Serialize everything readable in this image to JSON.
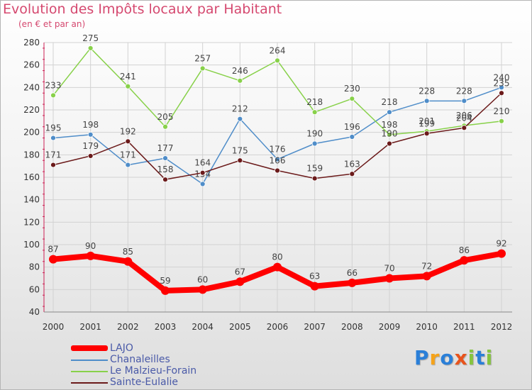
{
  "header": {
    "title": "Evolution des Impôts locaux par Habitant",
    "subtitle": "(en € et par an)"
  },
  "chart_data": {
    "type": "line",
    "title": "Evolution des Impôts locaux par Habitant",
    "subtitle": "(en € et par an)",
    "ylim": [
      40,
      280
    ],
    "y_ticks": [
      40,
      60,
      80,
      100,
      120,
      140,
      160,
      180,
      200,
      220,
      240,
      260,
      280
    ],
    "x": [
      "2000",
      "2001",
      "2002",
      "2003",
      "2004",
      "2005",
      "2006",
      "2007",
      "2008",
      "2009",
      "2010",
      "2011",
      "2012"
    ],
    "grid": true,
    "legend_position": "bottom-left",
    "series": [
      {
        "name": "LAJO",
        "color": "#ff0000",
        "values": [
          87,
          90,
          85,
          59,
          60,
          67,
          80,
          63,
          66,
          70,
          72,
          86,
          92
        ]
      },
      {
        "name": "Chanaleilles",
        "color": "#4f8dc9",
        "values": [
          195,
          198,
          171,
          177,
          154,
          212,
          176,
          190,
          196,
          218,
          228,
          228,
          240
        ]
      },
      {
        "name": "Le Malzieu-Forain",
        "color": "#88d14a",
        "values": [
          233,
          275,
          241,
          205,
          257,
          246,
          264,
          218,
          230,
          198,
          201,
          206,
          210
        ]
      },
      {
        "name": "Sainte-Eulalie",
        "color": "#6b1a1a",
        "values": [
          171,
          179,
          192,
          158,
          164,
          175,
          166,
          159,
          163,
          190,
          199,
          204,
          235
        ]
      }
    ]
  },
  "legend": {
    "items": [
      "LAJO",
      "Chanaleilles",
      "Le Malzieu-Forain",
      "Sainte-Eulalie"
    ]
  },
  "logo": {
    "letters": [
      "P",
      "r",
      "o",
      "x",
      "i",
      "t",
      "i"
    ],
    "colors": [
      "#2a7fd8",
      "#f5a31a",
      "#2a7fd8",
      "#e8531c",
      "#86c440",
      "#2a7fd8",
      "#86c440"
    ]
  }
}
